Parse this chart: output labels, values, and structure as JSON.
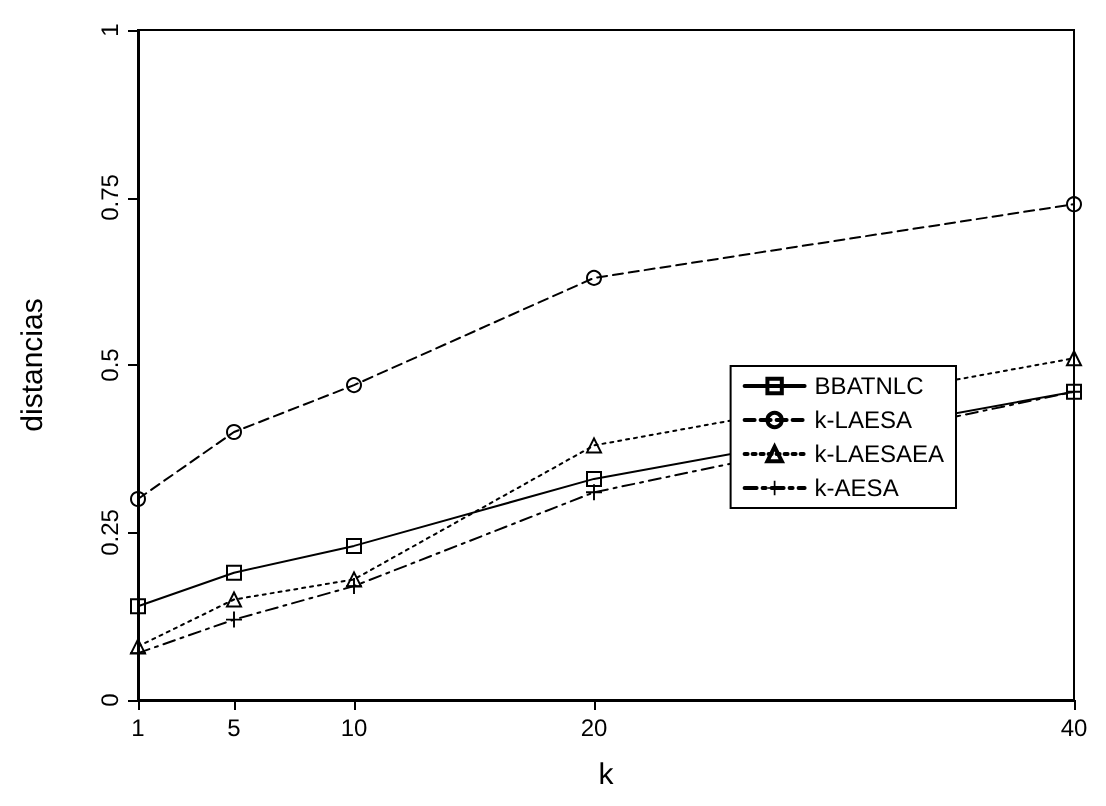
{
  "chart_data": {
    "type": "line",
    "xlabel": "k",
    "ylabel": "distancias",
    "x": [
      1,
      5,
      10,
      20,
      40
    ],
    "series": [
      {
        "name": "BBATNLC",
        "color": "#000000",
        "marker": "square",
        "line_style": "solid",
        "values": [
          0.14,
          0.19,
          0.23,
          0.33,
          0.46
        ]
      },
      {
        "name": "k-LAESA",
        "color": "#000000",
        "marker": "circle",
        "line_style": "dashed",
        "values": [
          0.3,
          0.4,
          0.47,
          0.63,
          0.74
        ]
      },
      {
        "name": "k-LAESAEA",
        "color": "#000000",
        "marker": "triangle",
        "line_style": "dotted",
        "values": [
          0.08,
          0.15,
          0.18,
          0.38,
          0.51
        ]
      },
      {
        "name": "k-AESA",
        "color": "#000000",
        "marker": "cross",
        "line_style": "dashdot",
        "values": [
          0.07,
          0.12,
          0.17,
          0.31,
          0.46
        ]
      }
    ],
    "xlim": [
      1,
      40
    ],
    "xticks": [
      1,
      5,
      10,
      20,
      40
    ],
    "ylim": [
      0,
      1
    ],
    "yticks": [
      0,
      0.25,
      0.5,
      0.75,
      1
    ],
    "grid": false,
    "legend": "right"
  }
}
